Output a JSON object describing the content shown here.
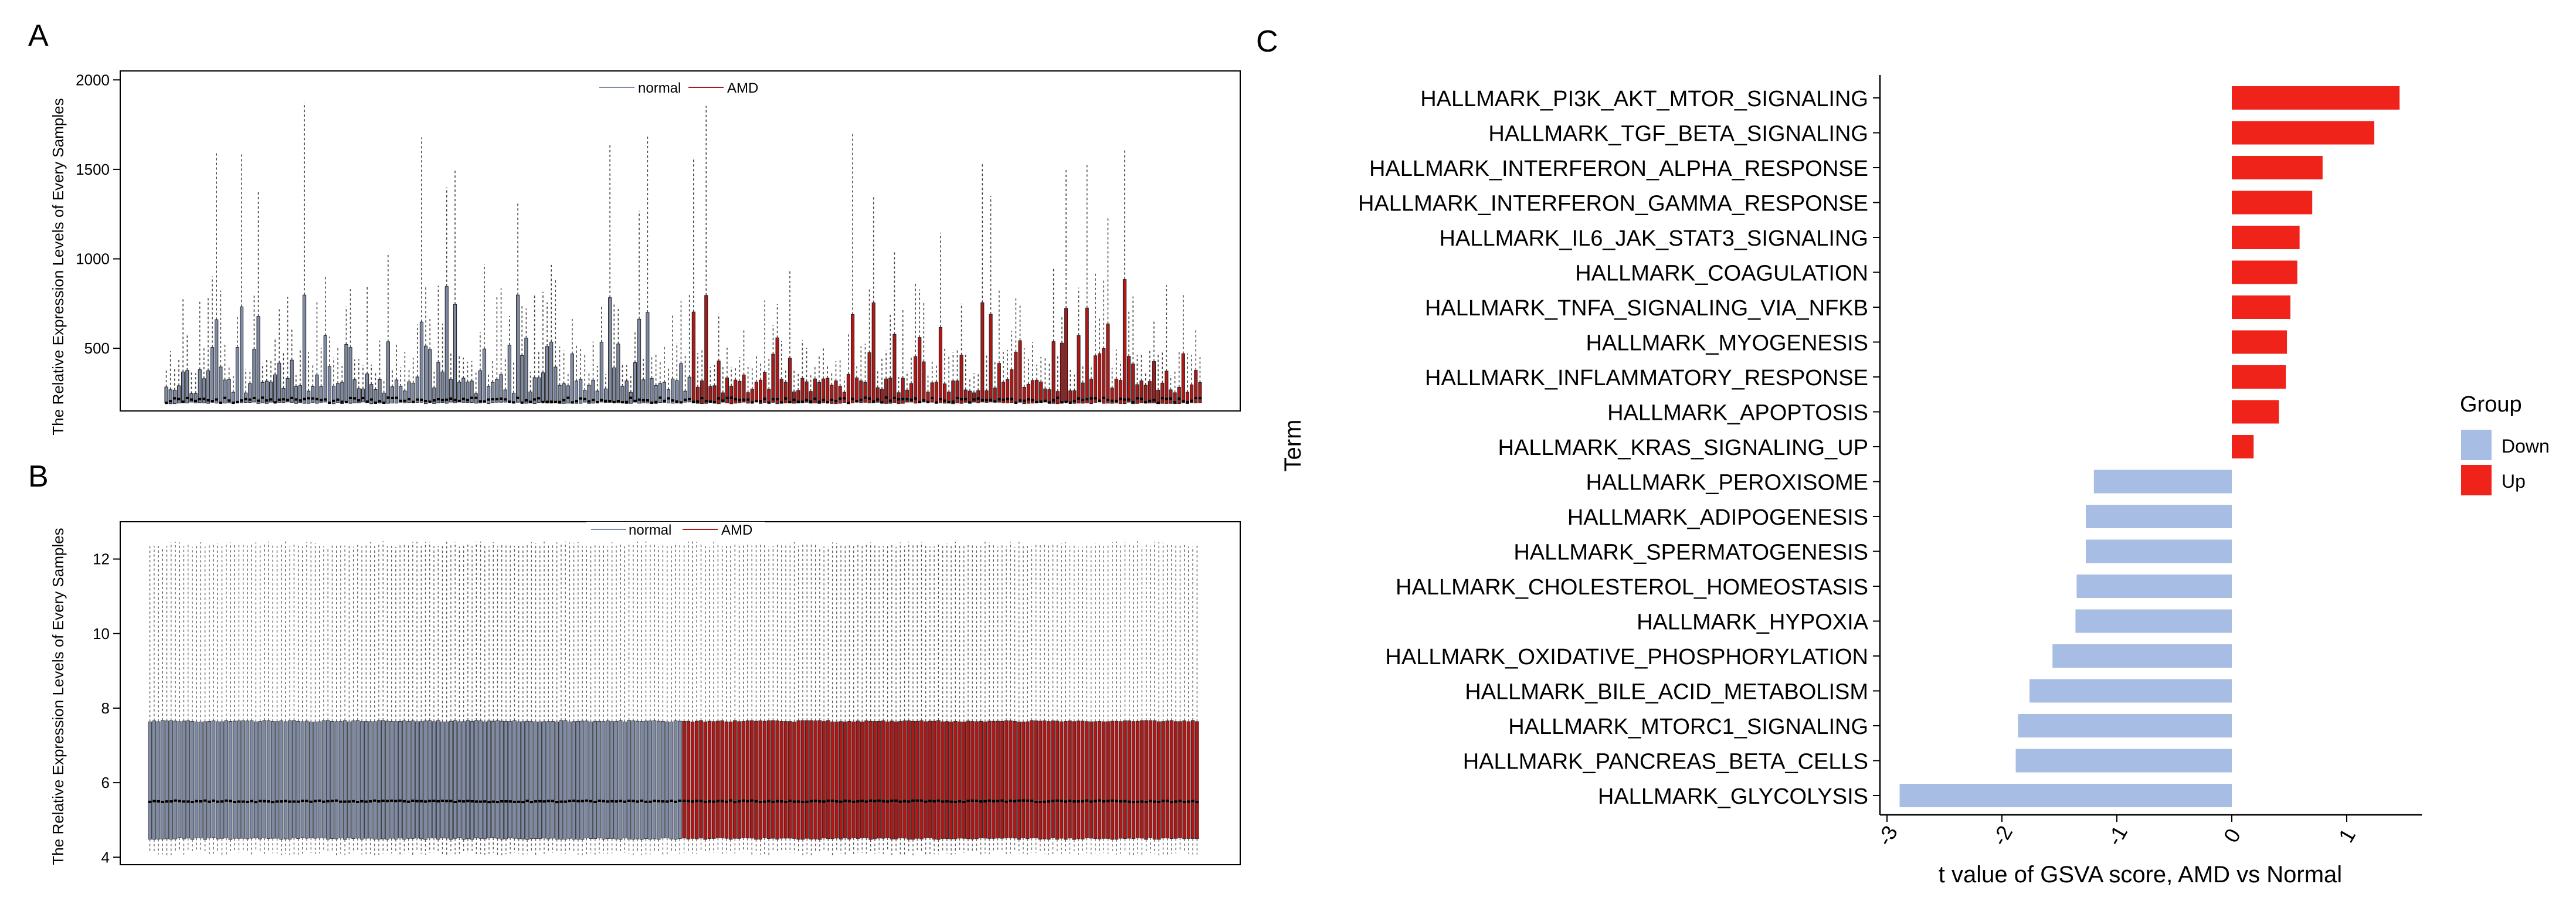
{
  "panels": {
    "a": {
      "letter": "A"
    },
    "b": {
      "letter": "B"
    },
    "c": {
      "letter": "C"
    }
  },
  "colors": {
    "normal": "#7f8ba5",
    "amd": "#b01818",
    "down": "#a8bde3",
    "up": "#f0231b",
    "axis": "#000000"
  },
  "chart_data": [
    {
      "type": "box",
      "panel": "A",
      "ylabel": "The Relative Expression Levels of Every Samples",
      "yticks": [
        500,
        1000,
        1500,
        2000
      ],
      "ylim": [
        150,
        2050
      ],
      "legend": [
        {
          "name": "normal"
        },
        {
          "name": "AMD"
        }
      ],
      "groups": [
        {
          "name": "normal",
          "count": 126
        },
        {
          "name": "AMD",
          "count": 122
        }
      ],
      "median_approx": 210,
      "q3_range_approx": [
        250,
        900
      ],
      "max_whisker_approx": 1940
    },
    {
      "type": "box",
      "panel": "B",
      "ylabel": "The Relative Expression Levels of Every Samples",
      "yticks": [
        4,
        6,
        8,
        10,
        12
      ],
      "ylim": [
        3.8,
        13.0
      ],
      "legend": [
        {
          "name": "normal"
        },
        {
          "name": "AMD"
        }
      ],
      "groups": [
        {
          "name": "normal",
          "count": 126
        },
        {
          "name": "AMD",
          "count": 122
        }
      ],
      "median_approx": 5.5,
      "q1_approx": 4.5,
      "q3_approx": 7.65,
      "whisker_low_approx": 4.1,
      "whisker_high_approx": 12.4
    },
    {
      "type": "bar",
      "orientation": "horizontal",
      "panel": "C",
      "xlabel": "t value of GSVA score, AMD vs Normal",
      "ylabel": "Term",
      "xticks": [
        -3,
        -2,
        -1,
        0,
        1
      ],
      "xlim": [
        -3.1,
        1.7
      ],
      "legend_title": "Group",
      "legend": [
        {
          "name": "Down"
        },
        {
          "name": "Up"
        }
      ],
      "categories": [
        "HALLMARK_PI3K_AKT_MTOR_SIGNALING",
        "HALLMARK_TGF_BETA_SIGNALING",
        "HALLMARK_INTERFERON_ALPHA_RESPONSE",
        "HALLMARK_INTERFERON_GAMMA_RESPONSE",
        "HALLMARK_IL6_JAK_STAT3_SIGNALING",
        "HALLMARK_COAGULATION",
        "HALLMARK_TNFA_SIGNALING_VIA_NFKB",
        "HALLMARK_MYOGENESIS",
        "HALLMARK_INFLAMMATORY_RESPONSE",
        "HALLMARK_APOPTOSIS",
        "HALLMARK_KRAS_SIGNALING_UP",
        "HALLMARK_PEROXISOME",
        "HALLMARK_ADIPOGENESIS",
        "HALLMARK_SPERMATOGENESIS",
        "HALLMARK_CHOLESTEROL_HOMEOSTASIS",
        "HALLMARK_HYPOXIA",
        "HALLMARK_OXIDATIVE_PHOSPHORYLATION",
        "HALLMARK_BILE_ACID_METABOLISM",
        "HALLMARK_MTORC1_SIGNALING",
        "HALLMARK_PANCREAS_BETA_CELLS",
        "HALLMARK_GLYCOLYSIS"
      ],
      "values": [
        1.46,
        1.24,
        0.79,
        0.7,
        0.59,
        0.57,
        0.51,
        0.48,
        0.47,
        0.41,
        0.19,
        -1.2,
        -1.27,
        -1.27,
        -1.35,
        -1.36,
        -1.56,
        -1.76,
        -1.86,
        -1.88,
        -2.89
      ],
      "groups": [
        "Up",
        "Up",
        "Up",
        "Up",
        "Up",
        "Up",
        "Up",
        "Up",
        "Up",
        "Up",
        "Up",
        "Down",
        "Down",
        "Down",
        "Down",
        "Down",
        "Down",
        "Down",
        "Down",
        "Down",
        "Down"
      ]
    }
  ]
}
